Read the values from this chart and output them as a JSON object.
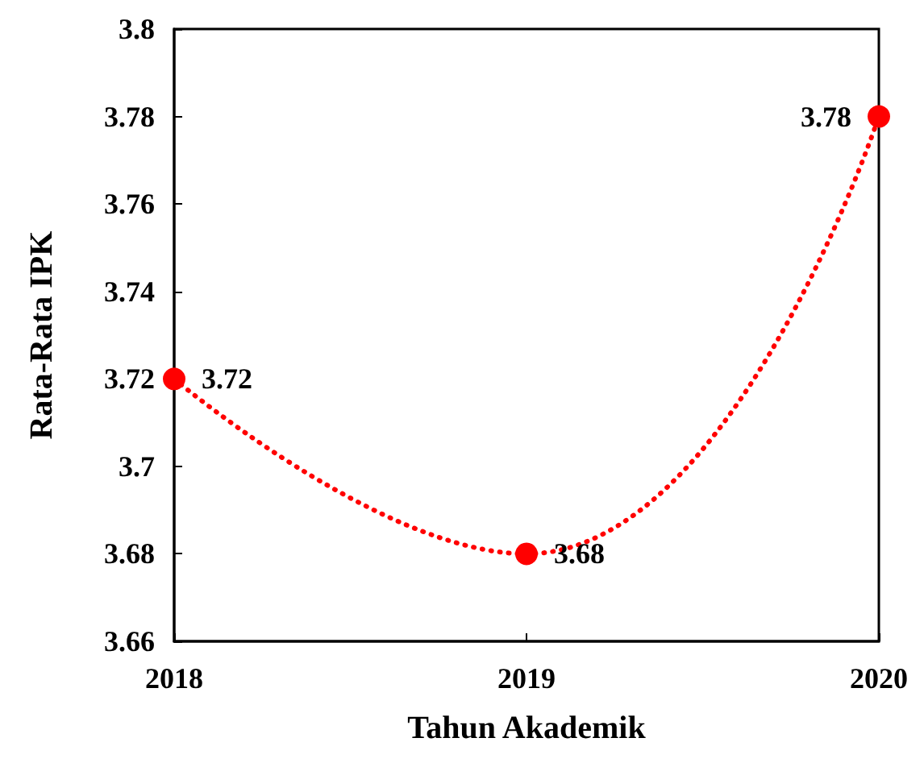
{
  "chart_data": {
    "type": "line",
    "xlabel": "Tahun Akademik",
    "ylabel": "Rata-Rata IPK",
    "x": [
      2018,
      2019,
      2020
    ],
    "series": [
      {
        "color": "#ff0000",
        "values": [
          3.72,
          3.68,
          3.78
        ]
      }
    ],
    "xlim": [
      2018,
      2020
    ],
    "xticks": [
      2018,
      2019,
      2020
    ],
    "ylim": [
      3.66,
      3.8
    ],
    "yticks": [
      3.66,
      3.68,
      3.7,
      3.72,
      3.74,
      3.76,
      3.78,
      3.8
    ],
    "grid": false,
    "marker": "circle",
    "line_style": "dotted",
    "data_labels": true
  }
}
